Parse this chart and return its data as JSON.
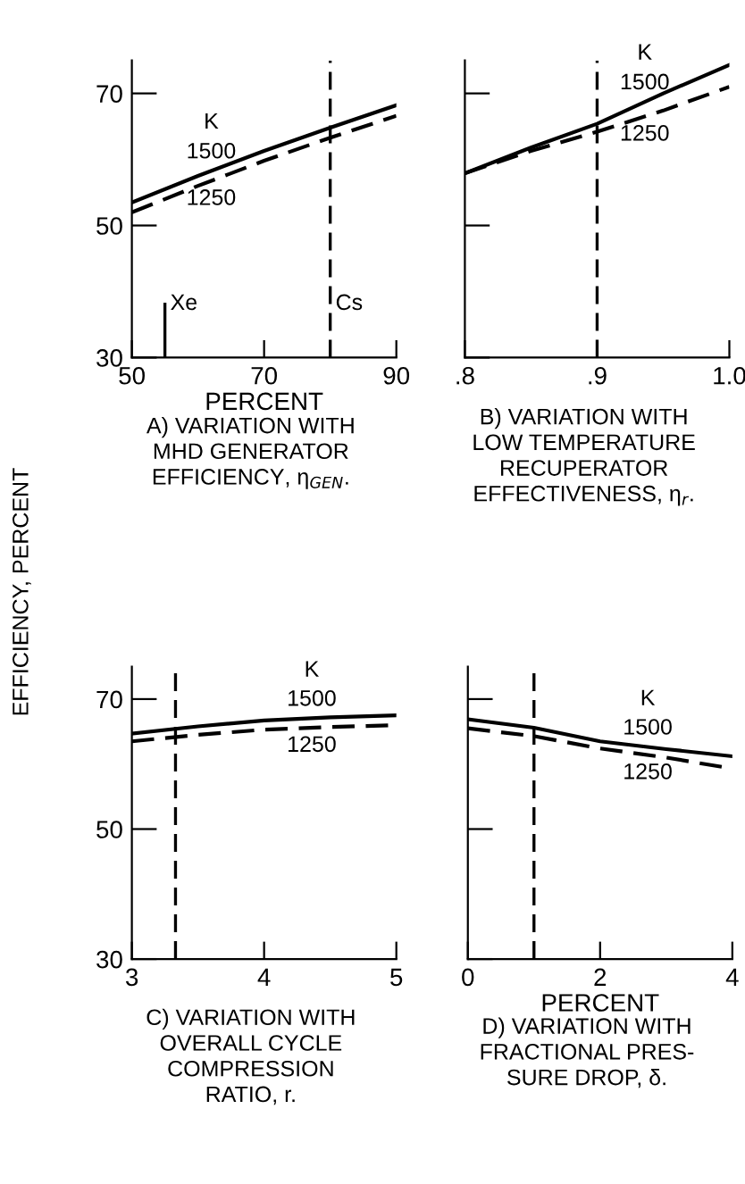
{
  "chart_data": [
    {
      "type": "line",
      "title": "A) VARIATION WITH\nMHD GENERATOR\nEFFICIENCY, η$_{GEN}$.",
      "xlabel": "PERCENT",
      "ylabel": "EFFICIENCY, PERCENT",
      "legend_title": "K",
      "x": [
        50,
        60,
        70,
        80,
        90
      ],
      "series": [
        {
          "name": "1500",
          "color": "#000000",
          "line_style": "solid",
          "values": [
            53.5,
            57.5,
            61.3,
            64.8,
            68.2
          ]
        },
        {
          "name": "1250",
          "color": "#000000",
          "line_style": "dashed",
          "values": [
            52,
            56,
            59.8,
            63.3,
            66.6
          ]
        }
      ],
      "xlim": [
        50,
        90
      ],
      "xticks": [
        50,
        70,
        90
      ],
      "ylim": [
        30,
        75
      ],
      "yticks": [
        30,
        50,
        70
      ],
      "ref_lines": [
        {
          "axis": "x",
          "value": 55,
          "label": "Xe",
          "line_style": "solid"
        },
        {
          "axis": "x",
          "value": 80,
          "label": "Cs",
          "line_style": "dashed"
        }
      ],
      "grid": false,
      "marker": "none"
    },
    {
      "type": "line",
      "title": "B) VARIATION WITH\nLOW TEMPERATURE\nRECUPERATOR\nEFFECTIVENESS, η$_{r}$.",
      "legend_title": "K",
      "x": [
        0.8,
        0.85,
        0.9,
        0.95,
        1.0
      ],
      "series": [
        {
          "name": "1500",
          "color": "#000000",
          "line_style": "solid",
          "values": [
            57.9,
            61.8,
            65.4,
            70,
            74.3
          ]
        },
        {
          "name": "1250",
          "color": "#000000",
          "line_style": "dashed",
          "values": [
            57.9,
            61.3,
            64.2,
            67.4,
            71
          ]
        }
      ],
      "xlim": [
        0.8,
        1.0
      ],
      "xticks": [
        {
          "value": 0.8,
          "label": ".8"
        },
        {
          "value": 0.9,
          "label": ".9"
        },
        {
          "value": 1.0,
          "label": "1.0"
        }
      ],
      "ylim": [
        30,
        75
      ],
      "yticks": [
        {
          "value": 30,
          "label": null
        },
        {
          "value": 50,
          "label": null
        },
        {
          "value": 70,
          "label": null
        }
      ],
      "ref_lines": [
        {
          "axis": "x",
          "value": 0.9,
          "line_style": "dashed"
        }
      ],
      "tick_labels": "x",
      "grid": false,
      "marker": "none"
    },
    {
      "type": "line",
      "title": "C) VARIATION WITH\nOVERALL CYCLE\nCOMPRESSION\nRATIO, r.",
      "legend_title": "K",
      "x": [
        3,
        3.5,
        4,
        4.5,
        5
      ],
      "series": [
        {
          "name": "1500",
          "color": "#000000",
          "line_style": "solid",
          "values": [
            64.7,
            65.8,
            66.7,
            67.2,
            67.5
          ]
        },
        {
          "name": "1250",
          "color": "#000000",
          "line_style": "dashed",
          "values": [
            63.5,
            64.5,
            65.3,
            65.7,
            66
          ]
        }
      ],
      "xlim": [
        3,
        5
      ],
      "xticks": [
        3,
        4,
        5
      ],
      "ylim": [
        30,
        75
      ],
      "yticks": [
        30,
        50,
        70
      ],
      "ref_lines": [
        {
          "axis": "x",
          "value": 3.33,
          "line_style": "dashed"
        }
      ],
      "grid": false,
      "marker": "none"
    },
    {
      "type": "line",
      "title": "D) VARIATION WITH\nFRACTIONAL PRES-\nSURE DROP, δ.",
      "xlabel": "PERCENT",
      "legend_title": "K",
      "x": [
        0,
        1,
        2,
        3,
        4
      ],
      "series": [
        {
          "name": "1500",
          "color": "#000000",
          "line_style": "solid",
          "values": [
            66.9,
            65.6,
            63.5,
            62.3,
            61.2
          ]
        },
        {
          "name": "1250",
          "color": "#000000",
          "line_style": "dashed",
          "values": [
            65.5,
            64.3,
            62.4,
            61,
            59.3
          ]
        }
      ],
      "xlim": [
        0,
        4
      ],
      "xticks": [
        0,
        2,
        4
      ],
      "ylim": [
        30,
        75
      ],
      "yticks": [
        {
          "value": 30,
          "label": null
        },
        {
          "value": 50,
          "label": null
        },
        {
          "value": 70,
          "label": null
        }
      ],
      "ref_lines": [
        {
          "axis": "x",
          "value": 1,
          "line_style": "dashed"
        }
      ],
      "tick_labels": "x",
      "grid": false,
      "marker": "none"
    }
  ]
}
